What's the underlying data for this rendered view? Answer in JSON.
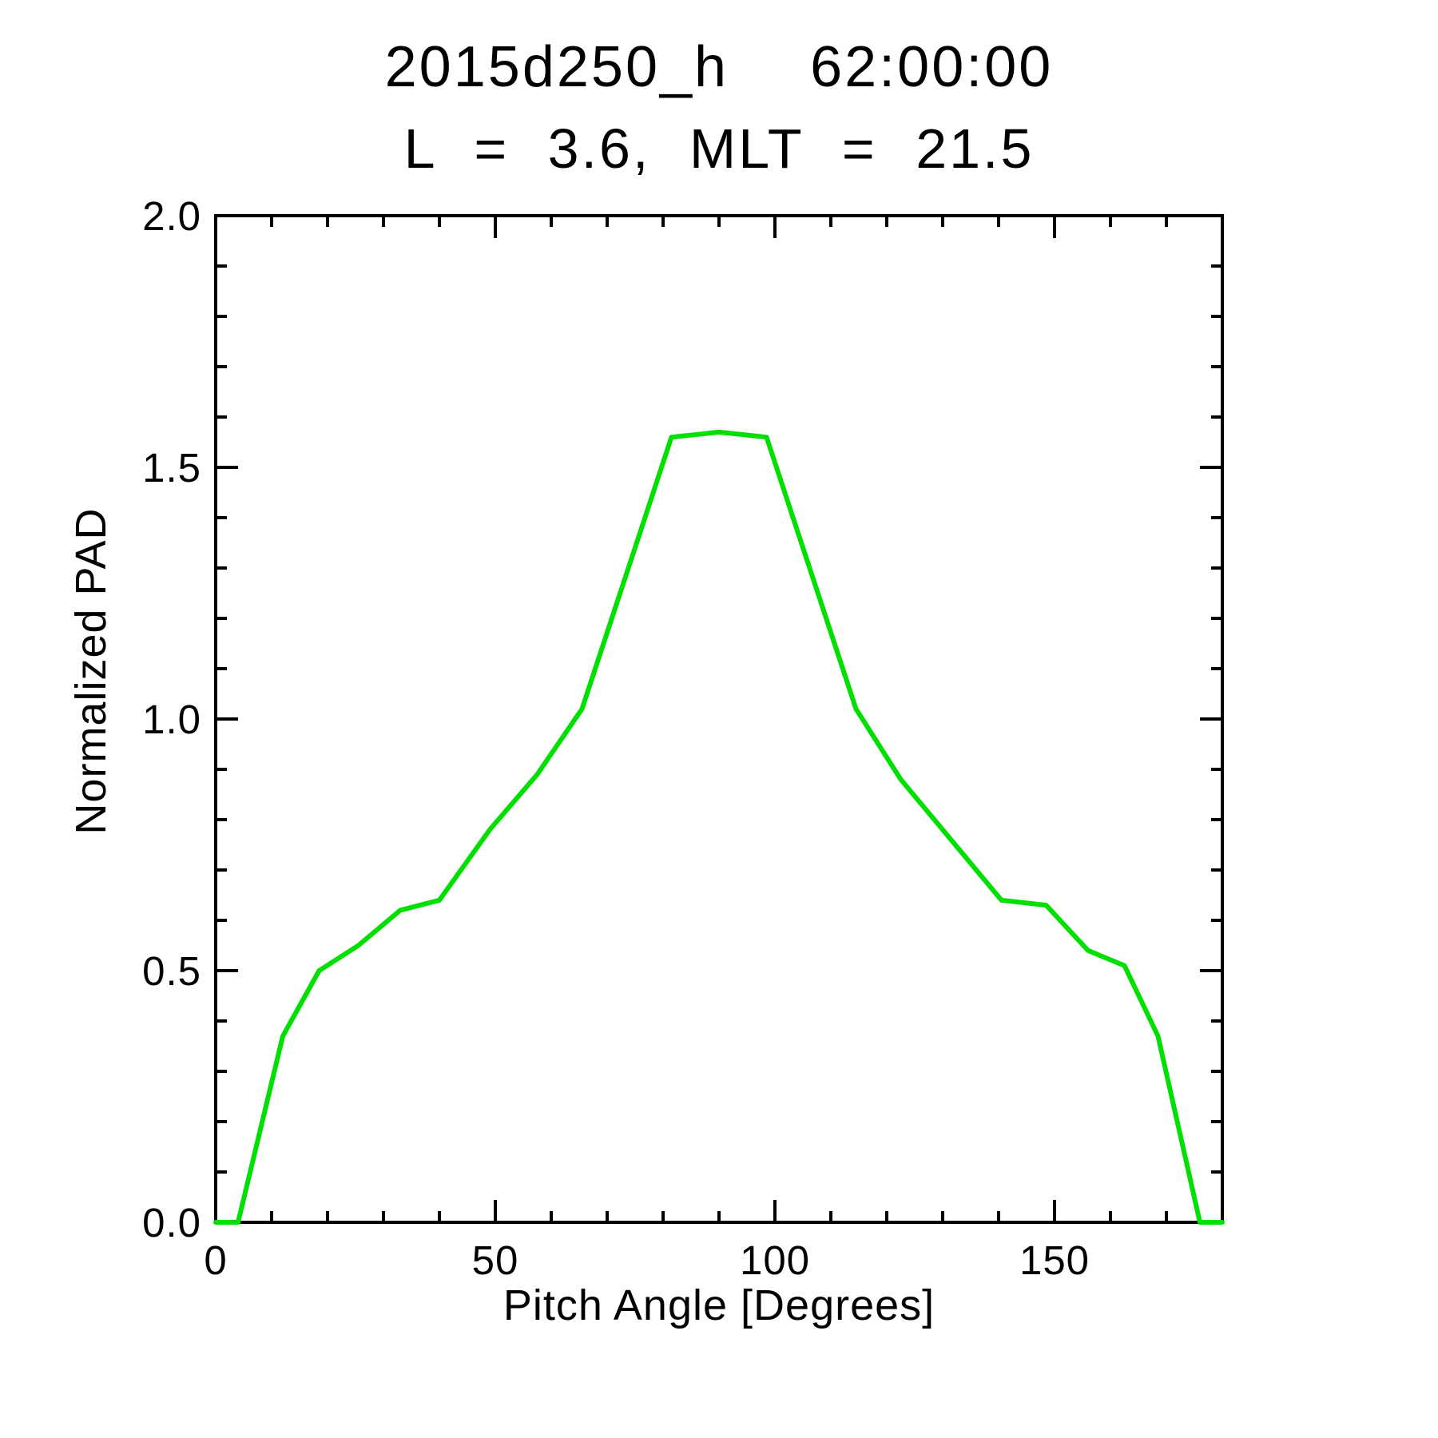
{
  "page": {
    "background": "#ffffff",
    "text_color": "#000000"
  },
  "chart_data": {
    "type": "line",
    "title": "2015d250_h  62:00:00",
    "subtitle": "L = 3.6, MLT = 21.5",
    "xlabel": "Pitch Angle [Degrees]",
    "ylabel": "Normalized PAD",
    "xlim": [
      0,
      180
    ],
    "ylim": [
      0.0,
      2.0
    ],
    "grid": false,
    "legend_position": "none",
    "x_major_ticks": [
      0,
      50,
      100,
      150
    ],
    "x_tick_labels": [
      "0",
      "50",
      "100",
      "150"
    ],
    "x_minor_step": 10,
    "y_major_ticks": [
      0.0,
      0.5,
      1.0,
      1.5,
      2.0
    ],
    "y_tick_labels": [
      "0.0",
      "0.5",
      "1.0",
      "1.5",
      "2.0"
    ],
    "y_minor_step": 0.1,
    "axis_color": "#000000",
    "series": [
      {
        "name": "normalized-pad-vs-pitch-angle",
        "color": "#00e000",
        "x": [
          0,
          4,
          12,
          18.5,
          25.5,
          33,
          40,
          49,
          57.5,
          65.5,
          73.5,
          81.5,
          90,
          98.5,
          106.5,
          114.5,
          122.5,
          130,
          140.5,
          148.5,
          156,
          162.5,
          168.5,
          176,
          180
        ],
        "y": [
          0.0,
          0.0,
          0.37,
          0.5,
          0.55,
          0.62,
          0.64,
          0.78,
          0.89,
          1.02,
          1.29,
          1.56,
          1.57,
          1.56,
          1.29,
          1.02,
          0.88,
          0.78,
          0.64,
          0.63,
          0.54,
          0.51,
          0.37,
          0.0,
          0.0
        ]
      }
    ]
  }
}
